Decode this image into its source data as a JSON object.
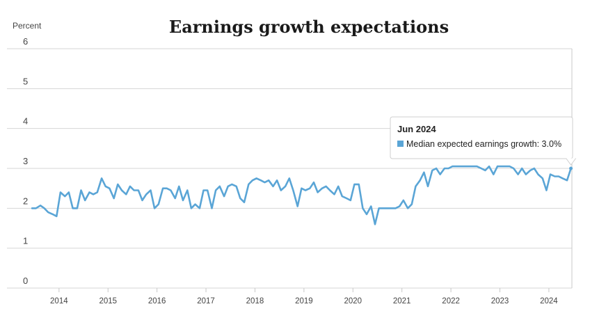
{
  "chart_data": {
    "type": "line",
    "title": "Earnings growth expectations",
    "ylabel": "Percent",
    "ylim": [
      0,
      6
    ],
    "yticks": [
      0,
      1,
      2,
      3,
      4,
      5,
      6
    ],
    "xlim": [
      2013.42,
      2024.47
    ],
    "xticks": [
      "2014",
      "2015",
      "2016",
      "2017",
      "2018",
      "2019",
      "2020",
      "2021",
      "2022",
      "2023",
      "2024"
    ],
    "grid": true,
    "series": [
      {
        "name": "Median expected earnings growth",
        "color": "#5aa5d6",
        "points": [
          [
            2013.45,
            2.0
          ],
          [
            2013.53,
            2.0
          ],
          [
            2013.62,
            2.07
          ],
          [
            2013.7,
            2.0
          ],
          [
            2013.78,
            1.9
          ],
          [
            2013.87,
            1.85
          ],
          [
            2013.95,
            1.8
          ],
          [
            2014.03,
            2.4
          ],
          [
            2014.12,
            2.3
          ],
          [
            2014.2,
            2.4
          ],
          [
            2014.28,
            2.0
          ],
          [
            2014.37,
            2.0
          ],
          [
            2014.45,
            2.45
          ],
          [
            2014.53,
            2.2
          ],
          [
            2014.62,
            2.4
          ],
          [
            2014.7,
            2.35
          ],
          [
            2014.78,
            2.4
          ],
          [
            2014.87,
            2.75
          ],
          [
            2014.95,
            2.55
          ],
          [
            2015.03,
            2.5
          ],
          [
            2015.12,
            2.25
          ],
          [
            2015.2,
            2.6
          ],
          [
            2015.28,
            2.45
          ],
          [
            2015.37,
            2.35
          ],
          [
            2015.45,
            2.55
          ],
          [
            2015.53,
            2.45
          ],
          [
            2015.62,
            2.45
          ],
          [
            2015.7,
            2.2
          ],
          [
            2015.78,
            2.35
          ],
          [
            2015.87,
            2.45
          ],
          [
            2015.95,
            2.0
          ],
          [
            2016.03,
            2.1
          ],
          [
            2016.12,
            2.5
          ],
          [
            2016.2,
            2.5
          ],
          [
            2016.28,
            2.45
          ],
          [
            2016.37,
            2.25
          ],
          [
            2016.45,
            2.55
          ],
          [
            2016.53,
            2.2
          ],
          [
            2016.62,
            2.45
          ],
          [
            2016.7,
            2.0
          ],
          [
            2016.78,
            2.1
          ],
          [
            2016.87,
            2.0
          ],
          [
            2016.95,
            2.45
          ],
          [
            2017.03,
            2.45
          ],
          [
            2017.12,
            2.0
          ],
          [
            2017.2,
            2.45
          ],
          [
            2017.28,
            2.55
          ],
          [
            2017.37,
            2.3
          ],
          [
            2017.45,
            2.55
          ],
          [
            2017.53,
            2.6
          ],
          [
            2017.62,
            2.55
          ],
          [
            2017.7,
            2.25
          ],
          [
            2017.78,
            2.15
          ],
          [
            2017.87,
            2.6
          ],
          [
            2017.95,
            2.7
          ],
          [
            2018.03,
            2.75
          ],
          [
            2018.12,
            2.7
          ],
          [
            2018.2,
            2.65
          ],
          [
            2018.28,
            2.7
          ],
          [
            2018.37,
            2.55
          ],
          [
            2018.45,
            2.7
          ],
          [
            2018.53,
            2.45
          ],
          [
            2018.62,
            2.55
          ],
          [
            2018.7,
            2.75
          ],
          [
            2018.78,
            2.45
          ],
          [
            2018.87,
            2.05
          ],
          [
            2018.95,
            2.5
          ],
          [
            2019.03,
            2.45
          ],
          [
            2019.12,
            2.5
          ],
          [
            2019.2,
            2.65
          ],
          [
            2019.28,
            2.4
          ],
          [
            2019.37,
            2.5
          ],
          [
            2019.45,
            2.55
          ],
          [
            2019.53,
            2.45
          ],
          [
            2019.62,
            2.35
          ],
          [
            2019.7,
            2.55
          ],
          [
            2019.78,
            2.3
          ],
          [
            2019.87,
            2.25
          ],
          [
            2019.95,
            2.2
          ],
          [
            2020.03,
            2.6
          ],
          [
            2020.12,
            2.6
          ],
          [
            2020.2,
            2.0
          ],
          [
            2020.28,
            1.85
          ],
          [
            2020.37,
            2.05
          ],
          [
            2020.45,
            1.6
          ],
          [
            2020.53,
            2.0
          ],
          [
            2020.62,
            2.0
          ],
          [
            2020.7,
            2.0
          ],
          [
            2020.78,
            2.0
          ],
          [
            2020.87,
            2.0
          ],
          [
            2020.95,
            2.05
          ],
          [
            2021.03,
            2.2
          ],
          [
            2021.12,
            2.0
          ],
          [
            2021.2,
            2.1
          ],
          [
            2021.28,
            2.55
          ],
          [
            2021.37,
            2.7
          ],
          [
            2021.45,
            2.9
          ],
          [
            2021.53,
            2.55
          ],
          [
            2021.62,
            2.95
          ],
          [
            2021.7,
            3.0
          ],
          [
            2021.78,
            2.85
          ],
          [
            2021.87,
            3.0
          ],
          [
            2021.95,
            3.0
          ],
          [
            2022.03,
            3.05
          ],
          [
            2022.12,
            3.05
          ],
          [
            2022.2,
            3.05
          ],
          [
            2022.28,
            3.05
          ],
          [
            2022.37,
            3.05
          ],
          [
            2022.45,
            3.05
          ],
          [
            2022.53,
            3.05
          ],
          [
            2022.62,
            3.0
          ],
          [
            2022.7,
            2.95
          ],
          [
            2022.78,
            3.05
          ],
          [
            2022.87,
            2.85
          ],
          [
            2022.95,
            3.05
          ],
          [
            2023.03,
            3.05
          ],
          [
            2023.12,
            3.05
          ],
          [
            2023.2,
            3.05
          ],
          [
            2023.28,
            3.0
          ],
          [
            2023.37,
            2.85
          ],
          [
            2023.45,
            3.0
          ],
          [
            2023.53,
            2.85
          ],
          [
            2023.62,
            2.95
          ],
          [
            2023.7,
            3.0
          ],
          [
            2023.78,
            2.85
          ],
          [
            2023.87,
            2.75
          ],
          [
            2023.95,
            2.45
          ],
          [
            2024.03,
            2.85
          ],
          [
            2024.12,
            2.8
          ],
          [
            2024.2,
            2.8
          ],
          [
            2024.28,
            2.75
          ],
          [
            2024.37,
            2.7
          ],
          [
            2024.45,
            3.0
          ]
        ]
      }
    ],
    "tooltip": {
      "date": "Jun 2024",
      "label": "Median expected earnings growth: 3.0%"
    }
  }
}
